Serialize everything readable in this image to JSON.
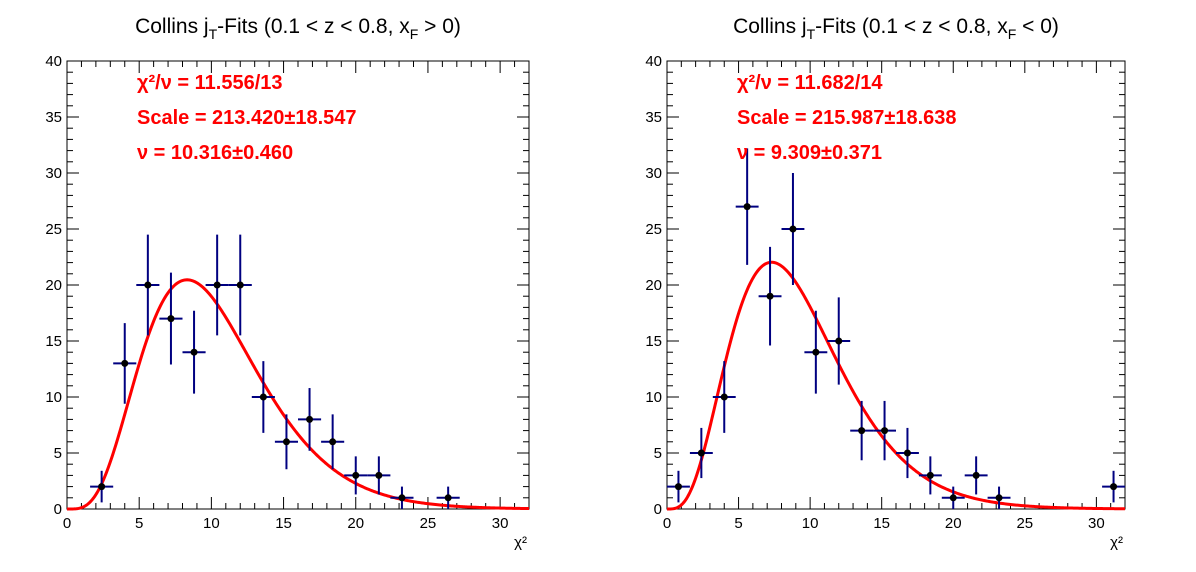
{
  "chart_data": [
    {
      "type": "scatter",
      "title_parts": [
        "Collins j",
        "T",
        "-Fits (0.1 < z < 0.8, x",
        "F",
        " > 0)"
      ],
      "xlabel": "χ²",
      "ylabel": "",
      "xlim": [
        0,
        32
      ],
      "ylim": [
        0,
        40
      ],
      "xticks": [
        0,
        5,
        10,
        15,
        20,
        25,
        30
      ],
      "yticks": [
        0,
        5,
        10,
        15,
        20,
        25,
        30,
        35,
        40
      ],
      "stats": [
        "χ²/ν = 11.556/13",
        "Scale = 213.420±18.547",
        "ν = 10.316±0.460"
      ],
      "bin_width": 1.6,
      "points": [
        {
          "x": 2.4,
          "y": 2,
          "err": 1.41
        },
        {
          "x": 4.0,
          "y": 13,
          "err": 3.6
        },
        {
          "x": 5.6,
          "y": 20,
          "err": 4.5
        },
        {
          "x": 7.2,
          "y": 17,
          "err": 4.1
        },
        {
          "x": 8.8,
          "y": 14,
          "err": 3.7
        },
        {
          "x": 10.4,
          "y": 20,
          "err": 4.5
        },
        {
          "x": 12.0,
          "y": 20,
          "err": 4.5
        },
        {
          "x": 13.6,
          "y": 10,
          "err": 3.2
        },
        {
          "x": 15.2,
          "y": 6,
          "err": 2.45
        },
        {
          "x": 16.8,
          "y": 8,
          "err": 2.8
        },
        {
          "x": 18.4,
          "y": 6,
          "err": 2.45
        },
        {
          "x": 20.0,
          "y": 3,
          "err": 1.7
        },
        {
          "x": 21.6,
          "y": 3,
          "err": 1.7
        },
        {
          "x": 23.2,
          "y": 1,
          "err": 1.0
        },
        {
          "x": 26.4,
          "y": 1,
          "err": 1.0
        }
      ],
      "fit": {
        "type": "chi2-pdf",
        "scale": 213.42,
        "ndf": 10.316,
        "range": [
          0,
          32
        ],
        "color": "#ff0000"
      },
      "marker_color": "#000000",
      "errorbar_color": "#000080"
    },
    {
      "type": "scatter",
      "title_parts": [
        "Collins j",
        "T",
        "-Fits (0.1 < z < 0.8, x",
        "F",
        " < 0)"
      ],
      "xlabel": "χ²",
      "ylabel": "",
      "xlim": [
        0,
        32
      ],
      "ylim": [
        0,
        40
      ],
      "xticks": [
        0,
        5,
        10,
        15,
        20,
        25,
        30
      ],
      "yticks": [
        0,
        5,
        10,
        15,
        20,
        25,
        30,
        35,
        40
      ],
      "stats": [
        "χ²/ν = 11.682/14",
        "Scale = 215.987±18.638",
        "ν = 9.309±0.371"
      ],
      "bin_width": 1.6,
      "points": [
        {
          "x": 0.8,
          "y": 2,
          "err": 1.41
        },
        {
          "x": 2.4,
          "y": 5,
          "err": 2.24
        },
        {
          "x": 4.0,
          "y": 10,
          "err": 3.2
        },
        {
          "x": 5.6,
          "y": 27,
          "err": 5.2
        },
        {
          "x": 7.2,
          "y": 19,
          "err": 4.4
        },
        {
          "x": 8.8,
          "y": 25,
          "err": 5.0
        },
        {
          "x": 10.4,
          "y": 14,
          "err": 3.7
        },
        {
          "x": 12.0,
          "y": 15,
          "err": 3.9
        },
        {
          "x": 13.6,
          "y": 7,
          "err": 2.65
        },
        {
          "x": 15.2,
          "y": 7,
          "err": 2.65
        },
        {
          "x": 16.8,
          "y": 5,
          "err": 2.24
        },
        {
          "x": 18.4,
          "y": 3,
          "err": 1.7
        },
        {
          "x": 20.0,
          "y": 1,
          "err": 1.0
        },
        {
          "x": 21.6,
          "y": 3,
          "err": 1.7
        },
        {
          "x": 23.2,
          "y": 1,
          "err": 1.0
        },
        {
          "x": 31.2,
          "y": 2,
          "err": 1.41
        }
      ],
      "fit": {
        "type": "chi2-pdf",
        "scale": 215.987,
        "ndf": 9.309,
        "range": [
          0,
          32
        ],
        "color": "#ff0000"
      },
      "marker_color": "#000000",
      "errorbar_color": "#000080"
    }
  ]
}
